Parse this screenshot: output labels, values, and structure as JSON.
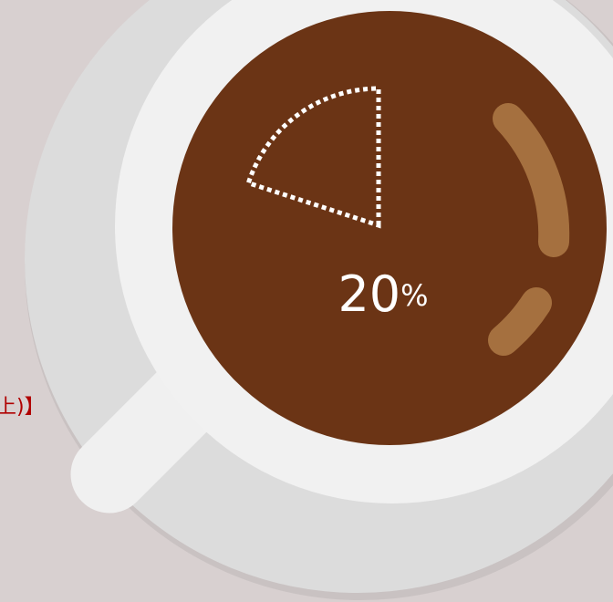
{
  "gauge": {
    "value": 20,
    "unit": "%"
  },
  "side_text": "上)】"
}
